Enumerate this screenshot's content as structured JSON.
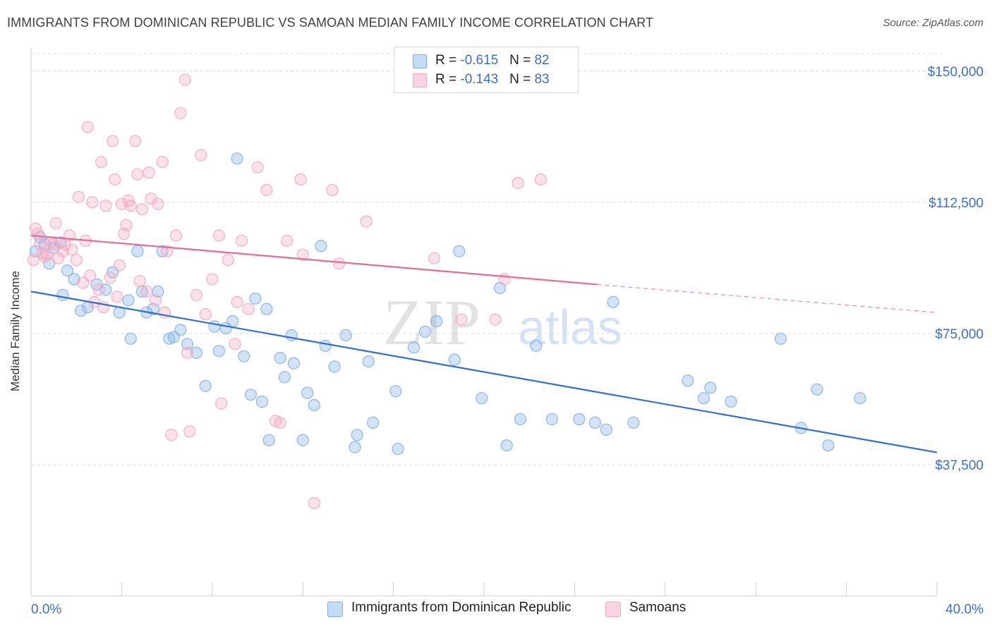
{
  "header": {
    "title": "IMMIGRANTS FROM DOMINICAN REPUBLIC VS SAMOAN MEDIAN FAMILY INCOME CORRELATION CHART",
    "source": "Source: ZipAtlas.com"
  },
  "watermark": {
    "zip": "ZIP",
    "atlas": "atlas"
  },
  "legend_top": [
    {
      "r_label": "R = ",
      "r_value": "-0.615",
      "n_label": "N = ",
      "n_value": "82",
      "color": "#a9c8f0"
    },
    {
      "r_label": "R = ",
      "r_value": "-0.143",
      "n_label": "N = ",
      "n_value": "83",
      "color": "#f7bfd0"
    }
  ],
  "chart_data": {
    "type": "scatter",
    "xlabel": "",
    "ylabel": "Median Family Income",
    "xlim": [
      0,
      40
    ],
    "ylim": [
      0,
      155000
    ],
    "x_tick_labels": [
      "0.0%",
      "40.0%"
    ],
    "y_ticks": [
      37500,
      75000,
      112500,
      150000
    ],
    "y_tick_labels": [
      "$37,500",
      "$75,000",
      "$112,500",
      "$150,000"
    ],
    "grid": "horizontal-dashed",
    "legend_position": "bottom-center",
    "series": [
      {
        "name": "Immigrants from Dominican Republic",
        "color": "#7fb0e8",
        "line_color": "#2f6fd0",
        "trend": {
          "x0": 0,
          "y0": 87000,
          "x1": 40,
          "y1": 41000,
          "dashed_to": 40
        },
        "points": [
          [
            0.2,
            98500
          ],
          [
            0.4,
            102500
          ],
          [
            0.6,
            100500
          ],
          [
            0.8,
            95000
          ],
          [
            1.0,
            99500
          ],
          [
            1.4,
            86000
          ],
          [
            1.6,
            93000
          ],
          [
            1.9,
            90500
          ],
          [
            2.2,
            81500
          ],
          [
            2.5,
            82500
          ],
          [
            2.9,
            89000
          ],
          [
            3.3,
            87500
          ],
          [
            3.6,
            92500
          ],
          [
            3.9,
            81000
          ],
          [
            4.3,
            84500
          ],
          [
            4.4,
            73500
          ],
          [
            4.7,
            98500
          ],
          [
            4.9,
            87000
          ],
          [
            5.1,
            81000
          ],
          [
            5.4,
            82000
          ],
          [
            5.6,
            87000
          ],
          [
            5.8,
            98500
          ],
          [
            6.1,
            73500
          ],
          [
            6.3,
            74000
          ],
          [
            6.6,
            76000
          ],
          [
            6.9,
            72000
          ],
          [
            7.3,
            69500
          ],
          [
            7.7,
            60000
          ],
          [
            8.1,
            77000
          ],
          [
            8.3,
            70000
          ],
          [
            8.6,
            76500
          ],
          [
            8.9,
            78500
          ],
          [
            9.1,
            125000
          ],
          [
            9.4,
            68500
          ],
          [
            9.7,
            57500
          ],
          [
            9.9,
            85000
          ],
          [
            10.2,
            55500
          ],
          [
            10.4,
            82000
          ],
          [
            10.5,
            44500
          ],
          [
            11.0,
            68000
          ],
          [
            11.2,
            62500
          ],
          [
            11.6,
            66500
          ],
          [
            11.5,
            74500
          ],
          [
            12.0,
            44500
          ],
          [
            12.2,
            58000
          ],
          [
            12.5,
            54500
          ],
          [
            12.8,
            100000
          ],
          [
            13.0,
            71500
          ],
          [
            13.4,
            65500
          ],
          [
            13.9,
            74500
          ],
          [
            14.4,
            46000
          ],
          [
            14.3,
            42500
          ],
          [
            14.9,
            67000
          ],
          [
            15.1,
            49500
          ],
          [
            16.1,
            58500
          ],
          [
            16.2,
            42000
          ],
          [
            16.9,
            71000
          ],
          [
            17.4,
            75500
          ],
          [
            17.9,
            78500
          ],
          [
            18.7,
            67500
          ],
          [
            18.9,
            98500
          ],
          [
            19.9,
            56500
          ],
          [
            20.7,
            88000
          ],
          [
            21.0,
            43000
          ],
          [
            21.6,
            50500
          ],
          [
            22.3,
            71500
          ],
          [
            23.0,
            50500
          ],
          [
            24.2,
            50500
          ],
          [
            24.9,
            49500
          ],
          [
            25.4,
            47500
          ],
          [
            25.7,
            84000
          ],
          [
            26.6,
            49500
          ],
          [
            29.0,
            61500
          ],
          [
            29.7,
            56500
          ],
          [
            30.0,
            59500
          ],
          [
            30.9,
            55500
          ],
          [
            33.1,
            73500
          ],
          [
            34.0,
            48000
          ],
          [
            34.7,
            59000
          ],
          [
            35.2,
            43000
          ],
          [
            36.6,
            56500
          ],
          [
            1.3,
            101000
          ]
        ]
      },
      {
        "name": "Samoans",
        "color": "#f4a9c0",
        "line_color": "#e56b93",
        "trend": {
          "x0": 0,
          "y0": 103000,
          "x1": 25,
          "y1": 89000,
          "dashed_to": 40,
          "dashed_end_y": 81000
        },
        "points": [
          [
            0.1,
            96000
          ],
          [
            0.2,
            105000
          ],
          [
            0.3,
            103500
          ],
          [
            0.5,
            98000
          ],
          [
            0.7,
            97500
          ],
          [
            0.9,
            101000
          ],
          [
            1.1,
            106500
          ],
          [
            1.2,
            96500
          ],
          [
            1.5,
            100500
          ],
          [
            1.7,
            103000
          ],
          [
            1.8,
            99000
          ],
          [
            2.0,
            96000
          ],
          [
            2.1,
            114000
          ],
          [
            2.3,
            89500
          ],
          [
            2.4,
            101500
          ],
          [
            2.5,
            134000
          ],
          [
            2.7,
            112500
          ],
          [
            2.8,
            84000
          ],
          [
            3.0,
            87500
          ],
          [
            3.1,
            124000
          ],
          [
            3.2,
            82500
          ],
          [
            3.3,
            111500
          ],
          [
            3.5,
            91000
          ],
          [
            3.6,
            130000
          ],
          [
            3.7,
            119000
          ],
          [
            3.9,
            94500
          ],
          [
            4.0,
            112000
          ],
          [
            4.1,
            103500
          ],
          [
            4.2,
            106000
          ],
          [
            4.3,
            113000
          ],
          [
            4.4,
            111500
          ],
          [
            4.6,
            130000
          ],
          [
            4.7,
            120500
          ],
          [
            4.9,
            110500
          ],
          [
            5.1,
            87000
          ],
          [
            5.2,
            121000
          ],
          [
            5.3,
            113500
          ],
          [
            5.5,
            84500
          ],
          [
            5.6,
            112000
          ],
          [
            5.8,
            124000
          ],
          [
            6.0,
            98500
          ],
          [
            6.2,
            46000
          ],
          [
            6.4,
            103000
          ],
          [
            6.6,
            138000
          ],
          [
            6.8,
            147500
          ],
          [
            7.0,
            47000
          ],
          [
            7.3,
            86000
          ],
          [
            7.5,
            126000
          ],
          [
            7.7,
            80500
          ],
          [
            8.0,
            90500
          ],
          [
            8.3,
            103000
          ],
          [
            8.4,
            55000
          ],
          [
            8.7,
            96000
          ],
          [
            9.0,
            72000
          ],
          [
            9.3,
            101500
          ],
          [
            9.6,
            82000
          ],
          [
            10.0,
            122500
          ],
          [
            10.4,
            116000
          ],
          [
            10.8,
            50000
          ],
          [
            11.0,
            49500
          ],
          [
            11.3,
            101500
          ],
          [
            11.9,
            119000
          ],
          [
            12.0,
            97500
          ],
          [
            12.5,
            26500
          ],
          [
            13.3,
            116000
          ],
          [
            13.6,
            95000
          ],
          [
            14.8,
            107000
          ],
          [
            17.8,
            96500
          ],
          [
            19.0,
            79000
          ],
          [
            20.5,
            79000
          ],
          [
            20.9,
            90500
          ],
          [
            21.5,
            118000
          ],
          [
            22.5,
            119000
          ],
          [
            0.4,
            100500
          ],
          [
            0.6,
            97000
          ],
          [
            1.0,
            100500
          ],
          [
            1.4,
            98500
          ],
          [
            2.6,
            91500
          ],
          [
            3.8,
            85500
          ],
          [
            4.8,
            90000
          ],
          [
            6.9,
            69500
          ],
          [
            5.9,
            81000
          ],
          [
            9.1,
            84000
          ]
        ]
      }
    ]
  }
}
